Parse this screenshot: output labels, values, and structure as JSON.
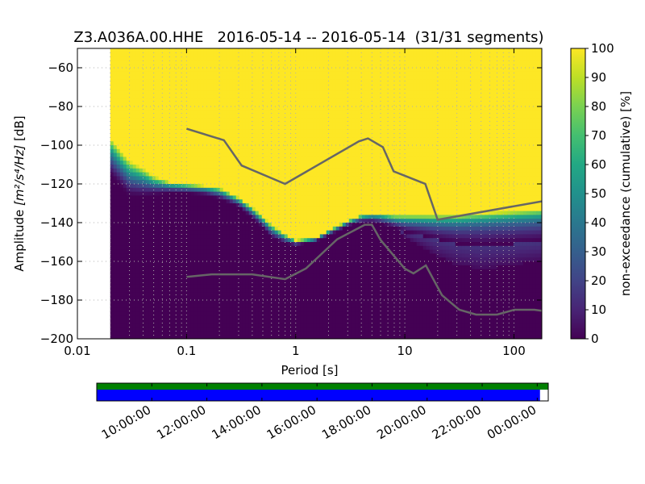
{
  "chart_data": {
    "type": "heatmap",
    "title": "Z3.A036A.00.HHE   2016-05-14 -- 2016-05-14  (31/31 segments)",
    "xlabel": "Period [s]",
    "ylabel_prefix": "Amplitude ",
    "ylabel_units": "[m²/s⁴/Hz]",
    "ylabel_suffix": " [dB]",
    "x_scale": "log",
    "xlim": [
      0.01,
      180
    ],
    "ylim": [
      -200,
      -50
    ],
    "x_ticks": [
      {
        "value": 0.01,
        "label": "0.01"
      },
      {
        "value": 0.1,
        "label": "0.1"
      },
      {
        "value": 1,
        "label": "1"
      },
      {
        "value": 10,
        "label": "10"
      },
      {
        "value": 100,
        "label": "100"
      }
    ],
    "y_ticks": [
      {
        "value": -60,
        "label": "−60"
      },
      {
        "value": -80,
        "label": "−80"
      },
      {
        "value": -100,
        "label": "−100"
      },
      {
        "value": -120,
        "label": "−120"
      },
      {
        "value": -140,
        "label": "−140"
      },
      {
        "value": -160,
        "label": "−160"
      },
      {
        "value": -180,
        "label": "−180"
      },
      {
        "value": -200,
        "label": "−200"
      }
    ],
    "grid": true,
    "colorbar": {
      "label": "non-exceedance (cumulative) [%]",
      "range": [
        0,
        100
      ],
      "ticks": [
        "0",
        "10",
        "20",
        "30",
        "40",
        "50",
        "60",
        "70",
        "80",
        "90",
        "100"
      ]
    },
    "period_min": 0.02,
    "psd_profile": {
      "period": [
        0.02,
        0.025,
        0.03,
        0.04,
        0.05,
        0.07,
        0.1,
        0.15,
        0.2,
        0.3,
        0.4,
        0.5,
        0.6,
        0.8,
        1,
        1.5,
        2,
        3,
        4,
        5,
        6,
        8,
        10,
        15,
        20,
        30,
        50,
        100,
        180
      ],
      "p0": [
        -116,
        -122,
        -127,
        -127,
        -126,
        -125,
        -125,
        -126,
        -128,
        -132,
        -138,
        -143,
        -148,
        -151,
        -152,
        -150,
        -147,
        -142,
        -140,
        -140,
        -141,
        -143,
        -145,
        -147,
        -149,
        -151,
        -152,
        -151,
        -150
      ],
      "p100": [
        -96,
        -103,
        -108,
        -112,
        -116,
        -119,
        -120,
        -121,
        -122,
        -127,
        -132,
        -137,
        -141,
        -146,
        -149,
        -148,
        -144,
        -139,
        -136,
        -135,
        -135,
        -136,
        -136,
        -136,
        -136,
        -136,
        -135,
        -134,
        -133
      ],
      "spread_deep": [
        0,
        0,
        0,
        0,
        0,
        0,
        0,
        0,
        0,
        0,
        0,
        0,
        0,
        0,
        0,
        0,
        0,
        0,
        0,
        0,
        0,
        0,
        2,
        5,
        7,
        9,
        10,
        9,
        8
      ]
    },
    "nlnm": {
      "period": [
        0.1,
        0.17,
        0.4,
        0.8,
        1.24,
        2.4,
        4.3,
        5,
        6,
        10,
        12,
        15.6,
        21.9,
        31.6,
        45,
        70,
        101,
        154,
        180
      ],
      "db": [
        -168,
        -166.7,
        -166.7,
        -169.2,
        -163.7,
        -148.6,
        -141.1,
        -141.1,
        -149,
        -163.8,
        -166.2,
        -162.1,
        -177.5,
        -185,
        -187.5,
        -187.5,
        -185,
        -185,
        -185.5
      ]
    },
    "nhnm": {
      "period": [
        0.1,
        0.22,
        0.32,
        0.8,
        3.8,
        4.6,
        6.3,
        7.9,
        15.4,
        20,
        180
      ],
      "db": [
        -91.5,
        -97.4,
        -110.5,
        -120,
        -98,
        -96.5,
        -101,
        -113.5,
        -120,
        -138.5,
        -129
      ]
    },
    "timeline": {
      "tick_labels": [
        "10:00:00",
        "12:00:00",
        "14:00:00",
        "16:00:00",
        "18:00:00",
        "20:00:00",
        "22:00:00",
        "00:00:00"
      ],
      "tick_hours": [
        10,
        12,
        14,
        16,
        18,
        20,
        22,
        24
      ],
      "range_hours": [
        8.0,
        24.4
      ],
      "data_hours": [
        8.0,
        24.4
      ],
      "used_hours": [
        8.0,
        24.1
      ]
    },
    "colors": {
      "yellow": "#fde725",
      "line": "#666666",
      "timeline_data": "#008000",
      "timeline_used": "#0000ff"
    }
  }
}
